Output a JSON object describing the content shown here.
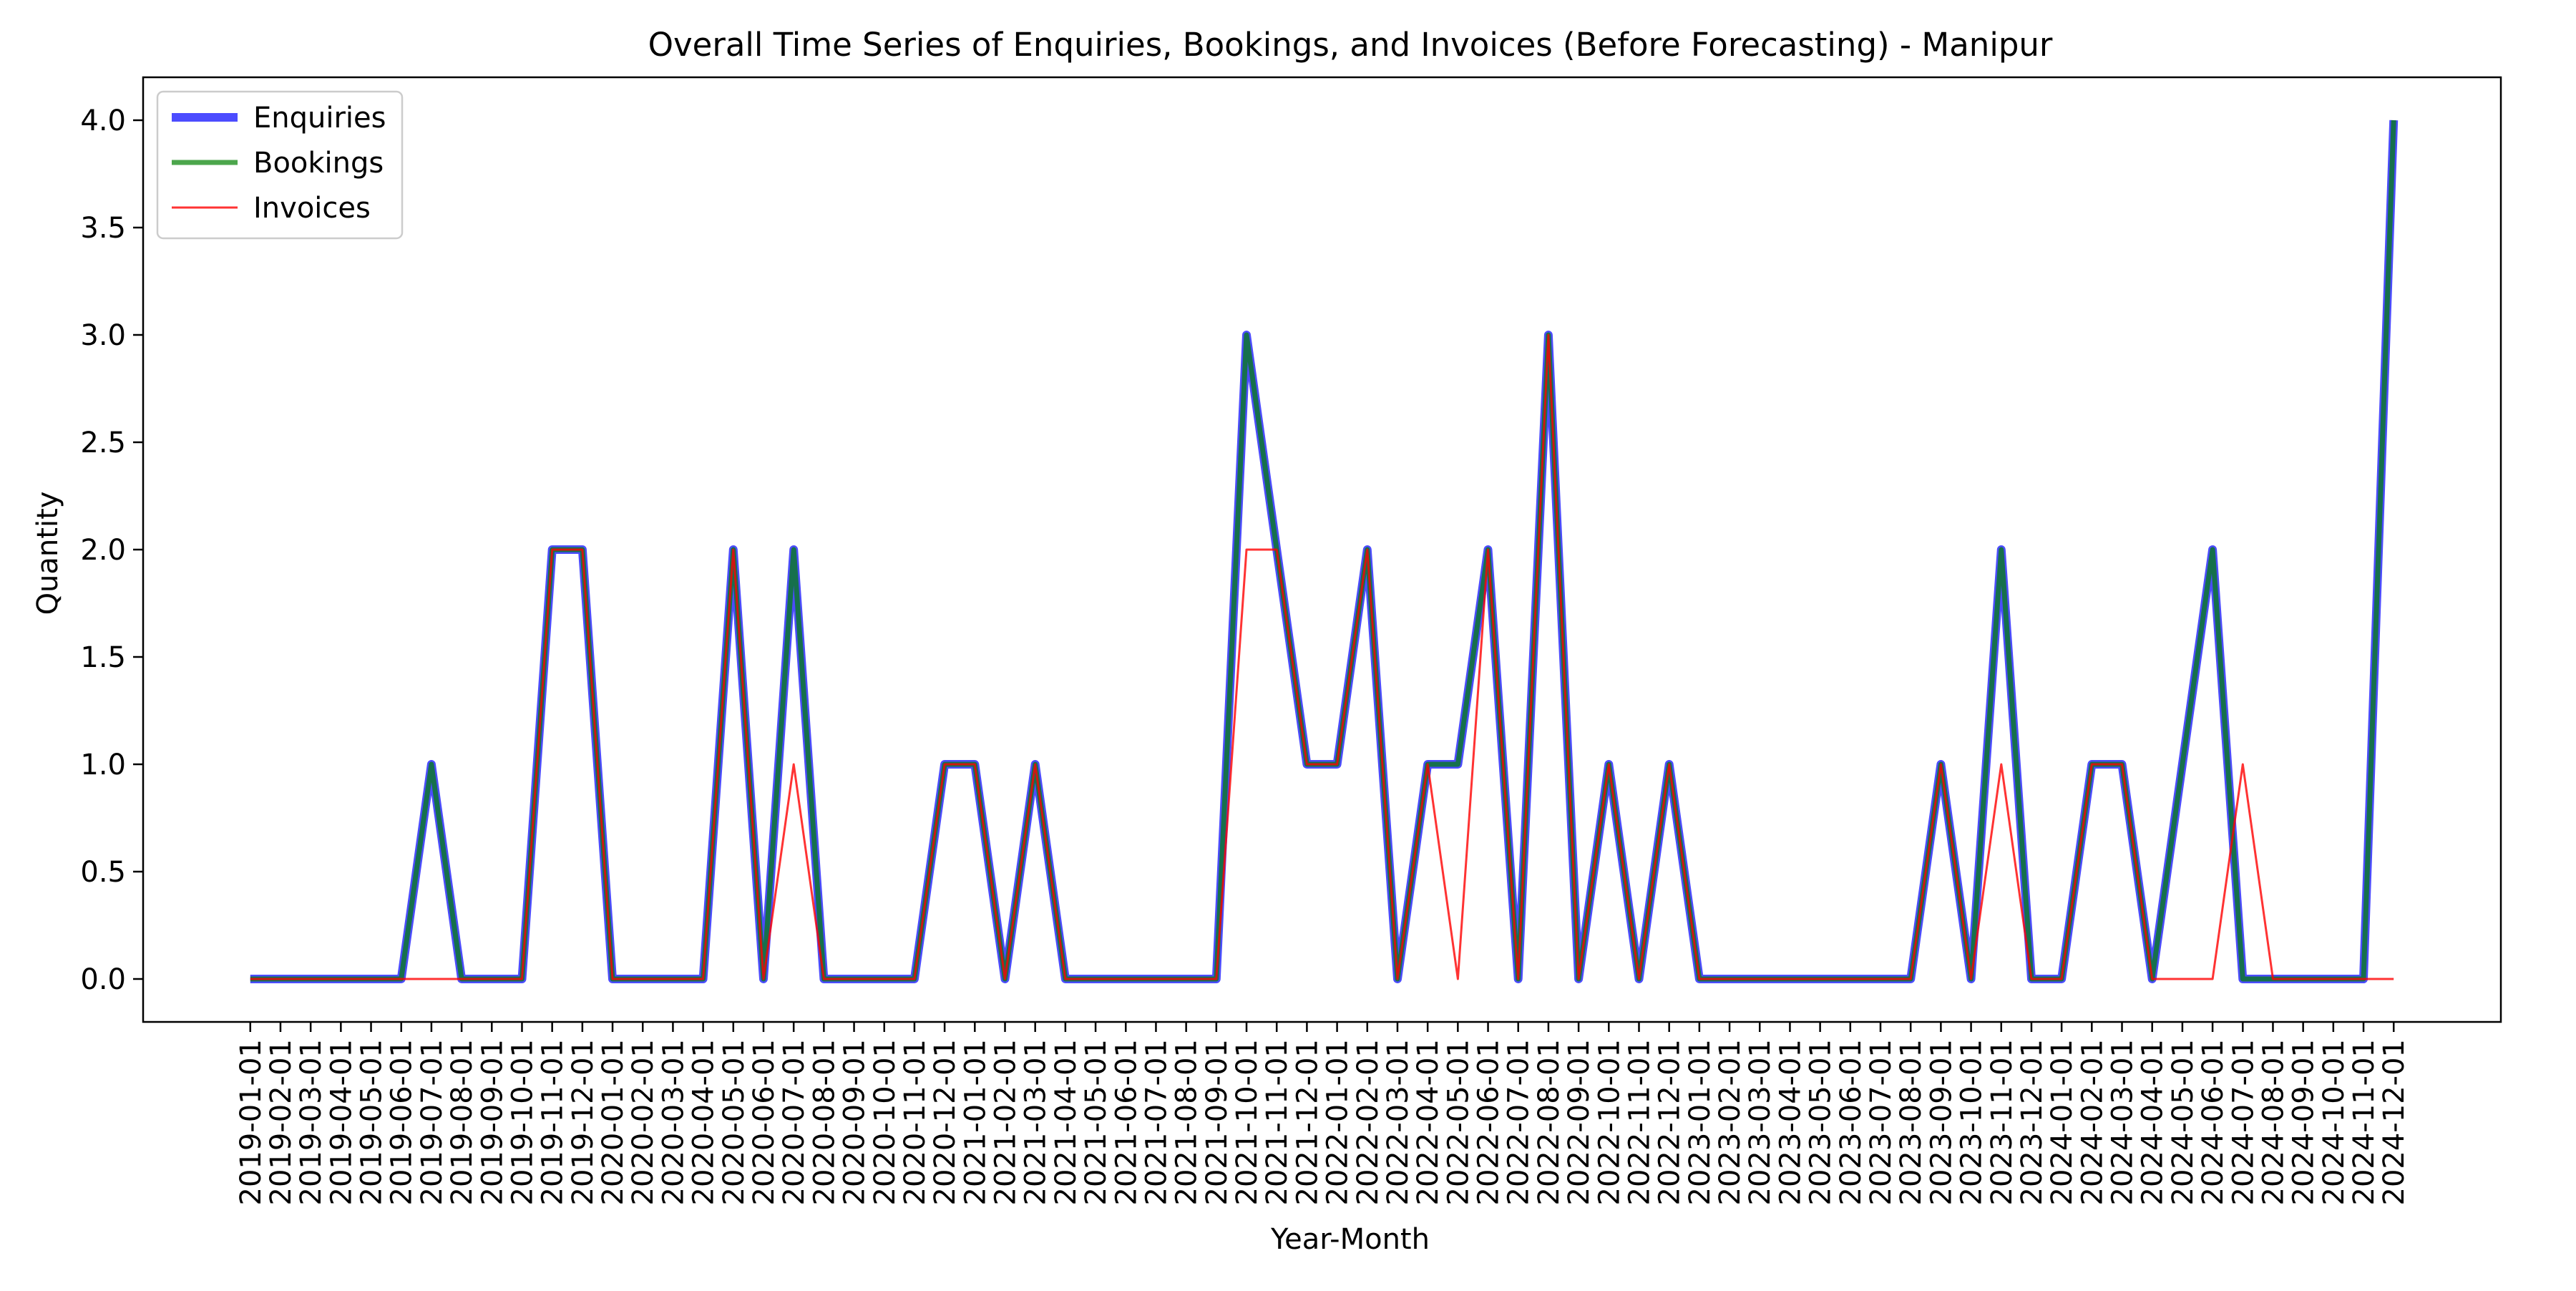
{
  "chart_data": {
    "type": "line",
    "title": "Overall Time Series of Enquiries, Bookings, and Invoices (Before Forecasting) - Manipur",
    "xlabel": "Year-Month",
    "ylabel": "Quantity",
    "ylim": [
      -0.2,
      4.2
    ],
    "yticks": [
      "0.0",
      "0.5",
      "1.0",
      "1.5",
      "2.0",
      "2.5",
      "3.0",
      "3.5",
      "4.0"
    ],
    "grid": false,
    "legend_position": "top-left",
    "x": [
      "2019-01-01",
      "2019-02-01",
      "2019-03-01",
      "2019-04-01",
      "2019-05-01",
      "2019-06-01",
      "2019-07-01",
      "2019-08-01",
      "2019-09-01",
      "2019-10-01",
      "2019-11-01",
      "2019-12-01",
      "2020-01-01",
      "2020-02-01",
      "2020-03-01",
      "2020-04-01",
      "2020-05-01",
      "2020-06-01",
      "2020-07-01",
      "2020-08-01",
      "2020-09-01",
      "2020-10-01",
      "2020-11-01",
      "2020-12-01",
      "2021-01-01",
      "2021-02-01",
      "2021-03-01",
      "2021-04-01",
      "2021-05-01",
      "2021-06-01",
      "2021-07-01",
      "2021-08-01",
      "2021-09-01",
      "2021-10-01",
      "2021-11-01",
      "2021-12-01",
      "2022-01-01",
      "2022-02-01",
      "2022-03-01",
      "2022-04-01",
      "2022-05-01",
      "2022-06-01",
      "2022-07-01",
      "2022-08-01",
      "2022-09-01",
      "2022-10-01",
      "2022-11-01",
      "2022-12-01",
      "2023-01-01",
      "2023-02-01",
      "2023-03-01",
      "2023-04-01",
      "2023-05-01",
      "2023-06-01",
      "2023-07-01",
      "2023-08-01",
      "2023-09-01",
      "2023-10-01",
      "2023-11-01",
      "2023-12-01",
      "2024-01-01",
      "2024-02-01",
      "2024-03-01",
      "2024-04-01",
      "2024-05-01",
      "2024-06-01",
      "2024-07-01",
      "2024-08-01",
      "2024-09-01",
      "2024-10-01",
      "2024-11-01",
      "2024-12-01"
    ],
    "series": [
      {
        "name": "Enquiries",
        "color": "#0000ff",
        "values": [
          0,
          0,
          0,
          0,
          0,
          0,
          1,
          0,
          0,
          0,
          2,
          2,
          0,
          0,
          0,
          0,
          2,
          0,
          2,
          0,
          0,
          0,
          0,
          1,
          1,
          0,
          1,
          0,
          0,
          0,
          0,
          0,
          0,
          3,
          2,
          1,
          1,
          2,
          0,
          1,
          1,
          2,
          0,
          3,
          0,
          1,
          0,
          1,
          0,
          0,
          0,
          0,
          0,
          0,
          0,
          0,
          1,
          0,
          2,
          0,
          0,
          1,
          1,
          0,
          1,
          2,
          0,
          0,
          0,
          0,
          0,
          4
        ]
      },
      {
        "name": "Bookings",
        "color": "#008000",
        "values": [
          0,
          0,
          0,
          0,
          0,
          0,
          1,
          0,
          0,
          0,
          2,
          2,
          0,
          0,
          0,
          0,
          2,
          0,
          2,
          0,
          0,
          0,
          0,
          1,
          1,
          0,
          1,
          0,
          0,
          0,
          0,
          0,
          0,
          3,
          2,
          1,
          1,
          2,
          0,
          1,
          1,
          2,
          0,
          3,
          0,
          1,
          0,
          1,
          0,
          0,
          0,
          0,
          0,
          0,
          0,
          0,
          1,
          0,
          2,
          0,
          0,
          1,
          1,
          0,
          1,
          2,
          0,
          0,
          0,
          0,
          0,
          4
        ]
      },
      {
        "name": "Invoices",
        "color": "#ff0000",
        "values": [
          0,
          0,
          0,
          0,
          0,
          0,
          0,
          0,
          0,
          0,
          2,
          2,
          0,
          0,
          0,
          0,
          2,
          0,
          1,
          0,
          0,
          0,
          0,
          1,
          1,
          0,
          1,
          0,
          0,
          0,
          0,
          0,
          0,
          2,
          2,
          1,
          1,
          2,
          0,
          1,
          0,
          2,
          0,
          3,
          0,
          1,
          0,
          1,
          0,
          0,
          0,
          0,
          0,
          0,
          0,
          0,
          1,
          0,
          1,
          0,
          0,
          1,
          1,
          0,
          0,
          0,
          1,
          0,
          0,
          0,
          0,
          0
        ]
      }
    ]
  }
}
